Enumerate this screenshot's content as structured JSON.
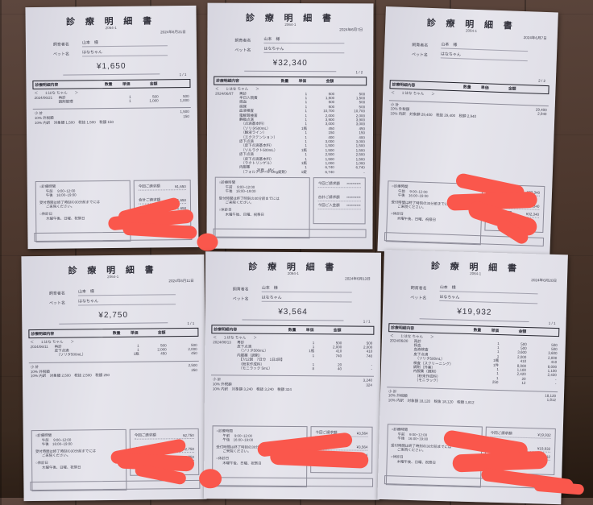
{
  "colors": {
    "floor_wood": "#4c372d",
    "paper": "#e3e2ea",
    "redaction_red": "#fa574c",
    "ink": "#41414e"
  },
  "common": {
    "title": "診 療 明 細 書",
    "code": "2064-1",
    "owner_label": "飼育者名",
    "owner": "山本　様",
    "pet_label": "ペット名",
    "pet": "はなちゃん",
    "table_headers": [
      "診療明細内容",
      "数量",
      "単価",
      "金額"
    ],
    "pet_line": "＜　　1:はな ちゃん　　＞",
    "footer": {
      "hours_title": "○診療時間",
      "hours": [
        "午前　 9:00~12:00",
        "午後　16:00~19:00"
      ],
      "notice": "受付時間は終了時刻の30分前までには",
      "notice2": "ご来院ください。",
      "closed_title": "○休診日",
      "closed": "木曜午後、日曜、祝祭日",
      "billing_labels": [
        "今回ご請求額",
        "合計ご請求額",
        "今回ご入金額"
      ]
    }
  },
  "documents": [
    {
      "date": "2024年6月21日",
      "page": "1 / 1",
      "total": "¥1,650",
      "note": "",
      "rows": [
        {
          "date": "2024/06/21",
          "name": "再診",
          "qty": "1",
          "unit": "500",
          "amount": "500"
        },
        {
          "date": "",
          "name": "調剤管理",
          "qty": "1",
          "unit": "1,000",
          "amount": "1,000"
        }
      ],
      "summary": [
        {
          "label": "小 計",
          "amount": "1,500"
        },
        {
          "label": "10% 外税額",
          "amount": "150"
        },
        {
          "label": "10% 内訳　対象額 1,500　税抜 1,500　税額 150",
          "amount": ""
        }
      ],
      "billing_values": [
        "¥1,650",
        "¥1,650",
        "¥1,650"
      ]
    },
    {
      "date": "2024年6月7日",
      "page": "1 / 2",
      "total": "¥32,340",
      "note": "次頁→続く",
      "rows": [
        {
          "date": "2024/06/07",
          "name": "再診",
          "qty": "1",
          "unit": "500",
          "amount": "500"
        },
        {
          "name": "半日入院費",
          "qty": "1",
          "unit": "1,500",
          "amount": "1,500"
        },
        {
          "name": "採血",
          "qty": "1",
          "unit": "500",
          "amount": "500"
        },
        {
          "name": "採尿",
          "qty": "1",
          "unit": "500",
          "amount": "500"
        },
        {
          "name": "血液検査",
          "qty": "1",
          "unit": "10,700",
          "amount": "10,700"
        },
        {
          "name": "電解質検査",
          "qty": "1",
          "unit": "2,000",
          "amount": "2,000"
        },
        {
          "name": "静脈点滴",
          "qty": "1",
          "unit": "3,900",
          "amount": "3,900"
        },
        {
          "name": "　（点滴基本料）",
          "qty": "1",
          "unit": "3,000",
          "amount": "3,000"
        },
        {
          "name": "　（ソリタ500mL）",
          "qty": "1瓶",
          "unit": "450",
          "amount": "450"
        },
        {
          "name": "　（輸液ライン）",
          "qty": "1",
          "unit": "150",
          "amount": "150"
        },
        {
          "name": "　（エクステンション）",
          "qty": "1",
          "unit": "400",
          "amount": "400"
        },
        {
          "name": "皮下点滴",
          "qty": "1",
          "unit": "3,000",
          "amount": "3,000"
        },
        {
          "name": "　（皮下点滴基本料）",
          "qty": "1",
          "unit": "1,500",
          "amount": "1,500"
        },
        {
          "name": "　（ソルラクト500mL）",
          "qty": "1瓶",
          "unit": "1,500",
          "amount": "1,500"
        },
        {
          "name": "皮下点滴",
          "qty": "1",
          "unit": "2,500",
          "amount": "2,500"
        },
        {
          "name": "　（皮下点滴基本料）",
          "qty": "1",
          "unit": "1,500",
          "amount": "1,500"
        },
        {
          "name": "　（ラクトリンゲル）",
          "qty": "1瓶",
          "unit": "1,000",
          "amount": "1,000"
        },
        {
          "name": "内服薬",
          "qty": "1",
          "unit": "6,740",
          "amount": "6,740"
        },
        {
          "name": "　（フォルテコール 5mg錠剤）",
          "qty": "1錠",
          "unit": "6,740",
          "amount": "-"
        }
      ],
      "summary": [],
      "billing_values": [
        "**********",
        "**********",
        "**********"
      ]
    },
    {
      "date": "2024年6月7日",
      "page": "2 / 2",
      "total": "",
      "note": "",
      "rows": [],
      "summary": [
        {
          "label": "小 計",
          "amount": "29,400"
        },
        {
          "label": "10% 外税額",
          "amount": "2,940"
        },
        {
          "label": "10% 内訳　対象額 29,400　税抜 29,400　税額 2,940",
          "amount": ""
        }
      ],
      "billing_values": [
        "¥32,340",
        "¥32,340",
        "¥32,340"
      ]
    },
    {
      "date": "2024年6月11日",
      "page": "1 / 1",
      "total": "¥2,750",
      "note": "",
      "rows": [
        {
          "date": "2024/06/11",
          "name": "再診",
          "qty": "1",
          "unit": "500",
          "amount": "500"
        },
        {
          "name": "皮下点滴",
          "qty": "1",
          "unit": "2,000",
          "amount": "2,000"
        },
        {
          "name": "　（ソリタ500mL）",
          "qty": "1瓶",
          "unit": "450",
          "amount": "450"
        }
      ],
      "summary": [
        {
          "label": "小 計",
          "amount": "2,500"
        },
        {
          "label": "10% 外税額",
          "amount": "250"
        },
        {
          "label": "10% 内訳　対象額 2,500　税抜 2,500　税額 250",
          "amount": ""
        }
      ],
      "billing_values": [
        "¥2,750",
        "¥2,750",
        "¥2,750"
      ]
    },
    {
      "date": "2024年6月13日",
      "page": "1 / 1",
      "total": "¥3,564",
      "note": "",
      "rows": [
        {
          "date": "2024/06/13",
          "name": "再診",
          "qty": "1",
          "unit": "500",
          "amount": "500"
        },
        {
          "name": "皮下点滴",
          "qty": "1",
          "unit": "2,000",
          "amount": "2,000"
        },
        {
          "name": "　（ソリタ500mL）",
          "qty": "1瓶",
          "unit": "410",
          "amount": "410"
        },
        {
          "name": "内服薬（調剤）",
          "qty": "1",
          "unit": "740",
          "amount": "740"
        },
        {
          "name": "　【7/12回　7日分　1日2回】",
          "qty": "",
          "unit": "",
          "amount": ""
        },
        {
          "name": "　（粉末作成料）",
          "qty": "1",
          "unit": "20",
          "amount": "-"
        },
        {
          "name": "　（モニラック 5mL）",
          "qty": "8",
          "unit": "40",
          "amount": "-"
        }
      ],
      "summary": [
        {
          "label": "小 計",
          "amount": "3,240"
        },
        {
          "label": "10% 外税額",
          "amount": "324"
        },
        {
          "label": "10% 内訳　対象額 3,240　税抜 3,240　税額 324",
          "amount": ""
        }
      ],
      "billing_values": [
        "¥3,564",
        "¥3,564",
        "¥3,564"
      ]
    },
    {
      "date": "2024年6月20日",
      "page": "1 / 1",
      "total": "¥19,932",
      "note": "",
      "rows": [
        {
          "date": "2024/06/20",
          "name": "再診",
          "qty": "1",
          "unit": "500",
          "amount": "500"
        },
        {
          "name": "採血",
          "qty": "1",
          "unit": "500",
          "amount": "500"
        },
        {
          "name": "血液検査",
          "qty": "1",
          "unit": "3,600",
          "amount": "3,600"
        },
        {
          "name": "皮下点滴",
          "qty": "1",
          "unit": "2,000",
          "amount": "2,000"
        },
        {
          "name": "　（ソリタ500mL）",
          "qty": "1瓶",
          "unit": "410",
          "amount": "410"
        },
        {
          "name": "検査（スクリーニング）",
          "qty": "1件",
          "unit": "8,000",
          "amount": "8,000"
        },
        {
          "name": "調剤（外薬）",
          "qty": "1",
          "unit": "1,100",
          "amount": "1,100"
        },
        {
          "name": "内服薬（調剤）",
          "qty": "1",
          "unit": "2,420",
          "amount": "2,420"
        },
        {
          "name": "　（粉末作成料）",
          "qty": "1",
          "unit": "20",
          "amount": "-"
        },
        {
          "name": "　（モニラック）",
          "qty": "250",
          "unit": "12",
          "amount": "-"
        }
      ],
      "summary": [
        {
          "label": "小 計",
          "amount": "18,120"
        },
        {
          "label": "10% 外税額",
          "amount": "1,812"
        },
        {
          "label": "10% 内訳　対象額 18,120　税抜 18,120　税額 1,812",
          "amount": ""
        }
      ],
      "billing_values": [
        "¥19,932",
        "¥19,932",
        "¥19,932"
      ]
    }
  ]
}
